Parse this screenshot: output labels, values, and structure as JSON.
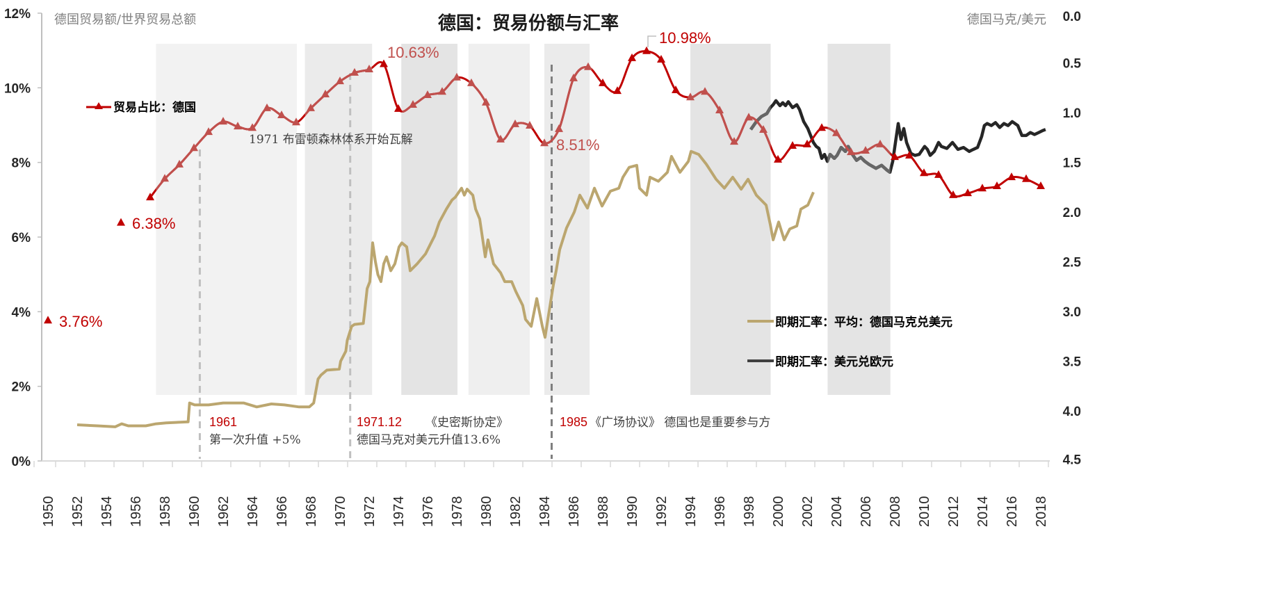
{
  "chart_data": {
    "type": "line",
    "title": "德国：贸易份额与汇率",
    "ylabel_left": "德国贸易额/世界贸易总额",
    "ylabel_right": "德国马克/美元",
    "ylim_left": [
      0,
      12
    ],
    "ylim_right": [
      0,
      4.5
    ],
    "right_axis_inverted": true,
    "xlim": [
      1950,
      2018
    ],
    "x_tick_labels": [
      "1950",
      "1952",
      "1954",
      "1956",
      "1958",
      "1960",
      "1962",
      "1964",
      "1966",
      "1968",
      "1970",
      "1972",
      "1974",
      "1976",
      "1978",
      "1980",
      "1982",
      "1984",
      "1986",
      "1988",
      "1990",
      "1992",
      "1994",
      "1996",
      "1998",
      "2000",
      "2002",
      "2004",
      "2006",
      "2008",
      "2010",
      "2012",
      "2014",
      "2016",
      "2018"
    ],
    "y_left_tick_labels": [
      "0%",
      "2%",
      "4%",
      "6%",
      "8%",
      "10%",
      "12%"
    ],
    "y_right_tick_labels": [
      "0.0",
      "0.5",
      "1.0",
      "1.5",
      "2.0",
      "2.5",
      "3.0",
      "3.5",
      "4.0",
      "4.5"
    ],
    "grid": false,
    "shaded_periods": [
      {
        "from": 1957.4,
        "to": 1967.05,
        "color": "#f2f2f2"
      },
      {
        "from": 1967.6,
        "to": 1972.2,
        "color": "#ebebeb"
      },
      {
        "from": 1974.2,
        "to": 1978.05,
        "color": "#e4e4e4"
      },
      {
        "from": 1978.8,
        "to": 1983.0,
        "color": "#efefef"
      },
      {
        "from": 1984.0,
        "to": 1987.1,
        "color": "#ebebeb"
      },
      {
        "from": 1994.0,
        "to": 1999.5,
        "color": "#e4e4e4"
      },
      {
        "from": 2003.4,
        "to": 2007.7,
        "color": "#e4e4e4"
      }
    ],
    "shaded_range_pct": [
      1.77,
      11.18
    ],
    "series": [
      {
        "name": "贸易占比：德国",
        "axis": "left",
        "unit": "%",
        "color": "#c00000",
        "color_in_band": "#c0504d",
        "marker": "triangle",
        "x": [
          1950,
          1955,
          1957,
          1958,
          1959,
          1960,
          1961,
          1962,
          1963,
          1964,
          1965,
          1966,
          1967,
          1968,
          1969,
          1970,
          1971,
          1972,
          1973,
          1974,
          1975,
          1976,
          1977,
          1978,
          1979,
          1980,
          1981,
          1982,
          1983,
          1984,
          1985,
          1986,
          1987,
          1988,
          1989,
          1990,
          1991,
          1992,
          1993,
          1994,
          1995,
          1996,
          1997,
          1998,
          1999,
          2000,
          2001,
          2002,
          2003,
          2004,
          2005,
          2006,
          2007,
          2008,
          2009,
          2010,
          2011,
          2012,
          2013,
          2014,
          2015,
          2016,
          2017,
          2018
        ],
        "values": [
          3.76,
          6.38,
          7.06,
          7.56,
          7.94,
          8.38,
          8.81,
          9.09,
          8.96,
          8.92,
          9.45,
          9.26,
          9.07,
          9.45,
          9.82,
          10.17,
          10.4,
          10.49,
          10.63,
          9.43,
          9.54,
          9.8,
          9.89,
          10.27,
          10.12,
          9.6,
          8.61,
          9.02,
          8.98,
          8.51,
          8.89,
          10.25,
          10.55,
          10.12,
          9.91,
          10.79,
          10.98,
          10.75,
          9.93,
          9.74,
          9.89,
          9.39,
          8.55,
          9.2,
          8.87,
          8.07,
          8.44,
          8.48,
          8.92,
          8.78,
          8.27,
          8.31,
          8.48,
          8.14,
          8.18,
          7.71,
          7.66,
          7.12,
          7.17,
          7.3,
          7.36,
          7.6,
          7.55,
          7.36
        ]
      },
      {
        "name": "即期汇率：平均：德国马克兑美元",
        "axis": "right",
        "color": "#bba66f",
        "points": [
          [
            1952.0,
            4.14
          ],
          [
            1953.4,
            4.15
          ],
          [
            1954.6,
            4.16
          ],
          [
            1955.05,
            4.13
          ],
          [
            1955.5,
            4.15
          ],
          [
            1956.7,
            4.15
          ],
          [
            1957.4,
            4.13
          ],
          [
            1958.1,
            4.12
          ],
          [
            1959.6,
            4.11
          ],
          [
            1959.7,
            3.92
          ],
          [
            1960.05,
            3.94
          ],
          [
            1961.0,
            3.94
          ],
          [
            1962.0,
            3.92
          ],
          [
            1963.4,
            3.92
          ],
          [
            1964.3,
            3.96
          ],
          [
            1965.3,
            3.93
          ],
          [
            1966.2,
            3.94
          ],
          [
            1967.2,
            3.96
          ],
          [
            1967.9,
            3.96
          ],
          [
            1968.2,
            3.92
          ],
          [
            1968.5,
            3.68
          ],
          [
            1968.7,
            3.64
          ],
          [
            1969.1,
            3.59
          ],
          [
            1969.95,
            3.58
          ],
          [
            1970.05,
            3.5
          ],
          [
            1970.4,
            3.4
          ],
          [
            1970.5,
            3.29
          ],
          [
            1970.8,
            3.15
          ],
          [
            1971.0,
            3.13
          ],
          [
            1971.6,
            3.12
          ],
          [
            1971.86,
            2.77
          ],
          [
            1972.05,
            2.7
          ],
          [
            1972.24,
            2.31
          ],
          [
            1972.43,
            2.5
          ],
          [
            1972.6,
            2.63
          ],
          [
            1972.81,
            2.7
          ],
          [
            1973.0,
            2.52
          ],
          [
            1973.19,
            2.45
          ],
          [
            1973.48,
            2.59
          ],
          [
            1973.76,
            2.52
          ],
          [
            1974.05,
            2.35
          ],
          [
            1974.24,
            2.31
          ],
          [
            1974.57,
            2.35
          ],
          [
            1974.81,
            2.59
          ],
          [
            1975.29,
            2.52
          ],
          [
            1975.86,
            2.42
          ],
          [
            1976.24,
            2.31
          ],
          [
            1976.48,
            2.24
          ],
          [
            1976.81,
            2.1
          ],
          [
            1977.29,
            1.97
          ],
          [
            1977.67,
            1.88
          ],
          [
            1977.9,
            1.85
          ],
          [
            1978.33,
            1.76
          ],
          [
            1978.52,
            1.83
          ],
          [
            1978.71,
            1.77
          ],
          [
            1979.1,
            1.83
          ],
          [
            1979.29,
            1.97
          ],
          [
            1979.57,
            2.07
          ],
          [
            1979.95,
            2.45
          ],
          [
            1980.14,
            2.28
          ],
          [
            1980.52,
            2.52
          ],
          [
            1981.0,
            2.61
          ],
          [
            1981.29,
            2.7
          ],
          [
            1981.76,
            2.7
          ],
          [
            1982.05,
            2.8
          ],
          [
            1982.52,
            2.94
          ],
          [
            1982.71,
            3.08
          ],
          [
            1983.1,
            3.15
          ],
          [
            1983.48,
            2.87
          ],
          [
            1983.86,
            3.15
          ],
          [
            1984.05,
            3.26
          ],
          [
            1984.24,
            3.08
          ],
          [
            1984.62,
            2.73
          ],
          [
            1984.81,
            2.59
          ],
          [
            1985.05,
            2.38
          ],
          [
            1985.52,
            2.16
          ],
          [
            1986.05,
            2.0
          ],
          [
            1986.43,
            1.83
          ],
          [
            1986.95,
            1.96
          ],
          [
            1987.43,
            1.76
          ],
          [
            1987.95,
            1.94
          ],
          [
            1988.52,
            1.79
          ],
          [
            1989.1,
            1.76
          ],
          [
            1989.38,
            1.65
          ],
          [
            1989.81,
            1.55
          ],
          [
            1990.33,
            1.53
          ],
          [
            1990.52,
            1.76
          ],
          [
            1991.0,
            1.83
          ],
          [
            1991.24,
            1.65
          ],
          [
            1991.81,
            1.69
          ],
          [
            1992.43,
            1.6
          ],
          [
            1992.71,
            1.44
          ],
          [
            1993.29,
            1.6
          ],
          [
            1993.86,
            1.49
          ],
          [
            1994.05,
            1.39
          ],
          [
            1994.57,
            1.42
          ],
          [
            1995.1,
            1.52
          ],
          [
            1995.76,
            1.67
          ],
          [
            1996.33,
            1.76
          ],
          [
            1996.9,
            1.65
          ],
          [
            1997.48,
            1.77
          ],
          [
            1997.95,
            1.67
          ],
          [
            1998.52,
            1.83
          ],
          [
            1999.19,
            1.93
          ],
          [
            1999.48,
            2.13
          ],
          [
            1999.67,
            2.28
          ],
          [
            2000.05,
            2.1
          ],
          [
            2000.43,
            2.28
          ],
          [
            2000.81,
            2.17
          ],
          [
            2001.29,
            2.14
          ],
          [
            2001.57,
            1.97
          ],
          [
            2002.05,
            1.93
          ],
          [
            2002.43,
            1.8
          ]
        ]
      },
      {
        "name": "即期汇率：美元兑欧元",
        "axis": "right",
        "color": "#262626",
        "color_in_band": "#666666",
        "points": [
          [
            1998.14,
            1.17
          ],
          [
            1998.52,
            1.09
          ],
          [
            1998.86,
            1.04
          ],
          [
            1999.24,
            1.01
          ],
          [
            1999.48,
            0.95
          ],
          [
            1999.67,
            0.92
          ],
          [
            1999.86,
            0.88
          ],
          [
            2000.14,
            0.93
          ],
          [
            2000.33,
            0.9
          ],
          [
            2000.52,
            0.93
          ],
          [
            2000.71,
            0.89
          ],
          [
            2001.0,
            0.95
          ],
          [
            2001.29,
            0.92
          ],
          [
            2001.48,
            0.97
          ],
          [
            2001.76,
            1.09
          ],
          [
            2002.05,
            1.16
          ],
          [
            2002.24,
            1.23
          ],
          [
            2002.43,
            1.3
          ],
          [
            2002.62,
            1.34
          ],
          [
            2002.81,
            1.36
          ],
          [
            2003.0,
            1.46
          ],
          [
            2003.19,
            1.42
          ],
          [
            2003.38,
            1.49
          ],
          [
            2003.57,
            1.42
          ],
          [
            2003.86,
            1.46
          ],
          [
            2004.05,
            1.43
          ],
          [
            2004.33,
            1.35
          ],
          [
            2004.62,
            1.39
          ],
          [
            2004.81,
            1.34
          ],
          [
            2005.1,
            1.42
          ],
          [
            2005.38,
            1.48
          ],
          [
            2005.67,
            1.45
          ],
          [
            2005.95,
            1.49
          ],
          [
            2006.24,
            1.52
          ],
          [
            2006.71,
            1.56
          ],
          [
            2007.1,
            1.53
          ],
          [
            2007.48,
            1.58
          ],
          [
            2007.67,
            1.6
          ],
          [
            2007.86,
            1.49
          ],
          [
            2008.05,
            1.3
          ],
          [
            2008.24,
            1.11
          ],
          [
            2008.43,
            1.27
          ],
          [
            2008.62,
            1.16
          ],
          [
            2008.81,
            1.3
          ],
          [
            2009.1,
            1.41
          ],
          [
            2009.38,
            1.43
          ],
          [
            2009.67,
            1.42
          ],
          [
            2010.05,
            1.34
          ],
          [
            2010.24,
            1.37
          ],
          [
            2010.43,
            1.43
          ],
          [
            2010.71,
            1.39
          ],
          [
            2011.0,
            1.3
          ],
          [
            2011.19,
            1.34
          ],
          [
            2011.57,
            1.36
          ],
          [
            2011.95,
            1.3
          ],
          [
            2012.33,
            1.37
          ],
          [
            2012.71,
            1.35
          ],
          [
            2013.1,
            1.39
          ],
          [
            2013.38,
            1.37
          ],
          [
            2013.67,
            1.35
          ],
          [
            2013.95,
            1.24
          ],
          [
            2014.14,
            1.13
          ],
          [
            2014.33,
            1.11
          ],
          [
            2014.62,
            1.13
          ],
          [
            2014.9,
            1.1
          ],
          [
            2015.19,
            1.15
          ],
          [
            2015.48,
            1.11
          ],
          [
            2015.76,
            1.13
          ],
          [
            2016.05,
            1.09
          ],
          [
            2016.43,
            1.13
          ],
          [
            2016.71,
            1.23
          ],
          [
            2017.0,
            1.23
          ],
          [
            2017.29,
            1.2
          ],
          [
            2017.57,
            1.22
          ],
          [
            2017.86,
            1.2
          ],
          [
            2018.14,
            1.18
          ],
          [
            2018.33,
            1.17
          ]
        ]
      }
    ],
    "data_labels": {
      "peak_1973": "10.63%",
      "peak_1991": "10.98%",
      "low_1984": "8.51%",
      "y1955": "6.38%",
      "y1950": "3.76%"
    },
    "event_lines": [
      {
        "year": 1960.4,
        "color": "#bfbfbf"
      },
      {
        "year": 1970.7,
        "color": "#bfbfbf"
      },
      {
        "year": 1984.5,
        "color": "#7f7f7f"
      }
    ],
    "annotations": {
      "bretton_woods": "1971 布雷顿森林体系开始瓦解",
      "e1961_year": "1961",
      "e1961_text": "第一次升值 +5%",
      "e1971_year": "1971.12",
      "e1971_title": "《史密斯协定》",
      "e1971_text": "德国马克对美元升值13.6%",
      "e1985_year": "1985",
      "e1985_text": "《广场协议》 德国也是重要参与方"
    },
    "legend": [
      "贸易占比：德国",
      "即期汇率：平均：德国马克兑美元",
      "即期汇率：美元兑欧元"
    ]
  }
}
